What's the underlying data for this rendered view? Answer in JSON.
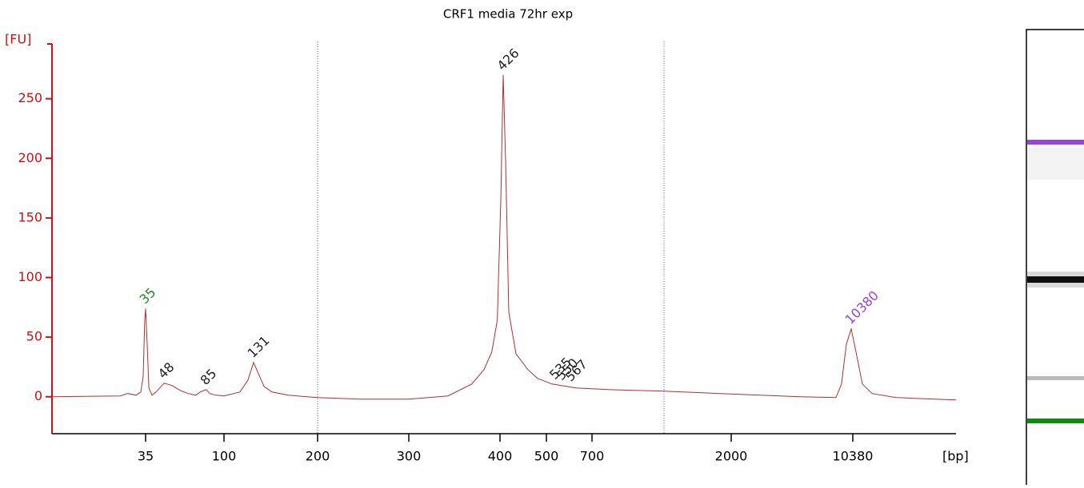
{
  "chart_data": {
    "type": "line",
    "title": "CRF1 media 72hr exp",
    "ylabel": "[FU]",
    "xlabel": "[bp]",
    "color": "#b03030",
    "axis_color": "#cc1111",
    "ylim": [
      -31,
      296
    ],
    "yticks": [
      0,
      50,
      100,
      150,
      200,
      250
    ],
    "xlim": [
      -43,
      17488
    ],
    "xticks": [
      35,
      100,
      200,
      300,
      400,
      500,
      700,
      2000,
      10380
    ],
    "x": [
      -43,
      14,
      20,
      27,
      31,
      33,
      34.3,
      35,
      36.3,
      37.7,
      40.3,
      43.6,
      50.3,
      56.9,
      63.5,
      70.1,
      76.8,
      80.1,
      85.4,
      88,
      93.4,
      100,
      117,
      125.6,
      131.6,
      136,
      142.7,
      151.3,
      168.4,
      200,
      246.5,
      300,
      343,
      369,
      382.5,
      391,
      397,
      401.7,
      406.9,
      412,
      419,
      434.5,
      460,
      481,
      524.6,
      630,
      849,
      1372,
      1895,
      6739,
      9219,
      9605,
      9936,
      10270,
      10600,
      11041,
      11702,
      13355,
      17488
    ],
    "values": [
      0,
      0.7,
      2.7,
      1.3,
      4,
      17.4,
      64,
      74,
      44,
      7.4,
      1.3,
      4,
      11.4,
      9.4,
      5.4,
      2.7,
      1.3,
      4,
      6,
      2.7,
      1.3,
      0.7,
      4,
      14,
      28.8,
      20.8,
      8.7,
      4,
      1.3,
      -0.7,
      -2,
      -2,
      0.7,
      10.7,
      22.8,
      37.5,
      64,
      165,
      270,
      198,
      71,
      36,
      22.8,
      15.4,
      10.7,
      7.4,
      6,
      4.7,
      2.7,
      0,
      -0.7,
      10.7,
      44,
      57,
      37.5,
      10.7,
      2.7,
      -0.7,
      -2.7
    ],
    "annotations": [
      {
        "text": "35",
        "x": 35,
        "y": 74,
        "color": "#228b22"
      },
      {
        "text": "48",
        "x": 50.3,
        "y": 11.4,
        "color": "#222222"
      },
      {
        "text": "85",
        "x": 85.4,
        "y": 6,
        "color": "#222222"
      },
      {
        "text": "131",
        "x": 131.6,
        "y": 28.8,
        "color": "#222222"
      },
      {
        "text": "426",
        "x": 406.9,
        "y": 270,
        "color": "#222222"
      },
      {
        "text": "535",
        "x": 540,
        "y": 10.7,
        "color": "#222222"
      },
      {
        "text": "550",
        "x": 570,
        "y": 10,
        "color": "#222222"
      },
      {
        "text": "567",
        "x": 610,
        "y": 9,
        "color": "#222222"
      },
      {
        "text": "10380",
        "x": 10270,
        "y": 57,
        "color": "#9a40e0"
      }
    ]
  }
}
